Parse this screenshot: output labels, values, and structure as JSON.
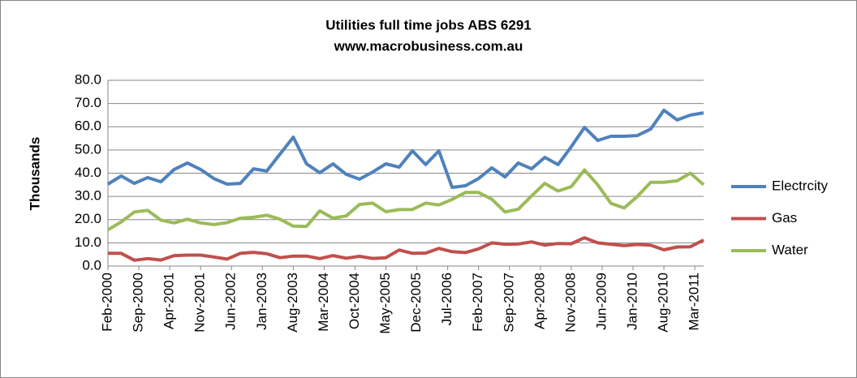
{
  "chart_data": {
    "type": "line",
    "title": "Utilities full time jobs ABS 6291",
    "subtitle": "www.macrobusiness.com.au",
    "y_label": "Thousands",
    "x": [
      "2000-02",
      "2000-05",
      "2000-08",
      "2000-11",
      "2001-02",
      "2001-05",
      "2001-08",
      "2001-11",
      "2002-02",
      "2002-05",
      "2002-08",
      "2002-11",
      "2003-02",
      "2003-05",
      "2003-08",
      "2003-11",
      "2004-02",
      "2004-05",
      "2004-08",
      "2004-11",
      "2005-02",
      "2005-05",
      "2005-08",
      "2005-11",
      "2006-02",
      "2006-05",
      "2006-08",
      "2006-11",
      "2007-02",
      "2007-05",
      "2007-08",
      "2007-11",
      "2008-02",
      "2008-05",
      "2008-08",
      "2008-11",
      "2009-02",
      "2009-05",
      "2009-08",
      "2009-11",
      "2010-02",
      "2010-05",
      "2010-08",
      "2010-11",
      "2011-02",
      "2011-05"
    ],
    "series": [
      {
        "name": "Electrcity",
        "color": "#4f81bd",
        "values": [
          35.3,
          38.8,
          35.6,
          38.1,
          36.3,
          41.6,
          44.4,
          41.6,
          37.7,
          35.3,
          35.6,
          41.9,
          40.9,
          48.2,
          55.5,
          44.0,
          40.2,
          44.0,
          39.5,
          37.4,
          40.5,
          44.0,
          42.6,
          49.6,
          43.7,
          49.6,
          33.9,
          34.6,
          37.7,
          42.3,
          38.4,
          44.4,
          41.9,
          46.8,
          43.7,
          51.4,
          59.7,
          54.1,
          55.9,
          55.9,
          56.2,
          59.0,
          67.1,
          62.9,
          65.0,
          66.0
        ]
      },
      {
        "name": "Gas",
        "color": "#c0504d",
        "values": [
          5.5,
          5.5,
          2.5,
          3.2,
          2.6,
          4.5,
          4.7,
          4.7,
          3.9,
          3.0,
          5.5,
          5.9,
          5.3,
          3.6,
          4.3,
          4.3,
          3.2,
          4.5,
          3.4,
          4.2,
          3.3,
          3.6,
          6.9,
          5.5,
          5.6,
          7.6,
          6.2,
          5.8,
          7.4,
          10.0,
          9.4,
          9.5,
          10.4,
          9.0,
          9.7,
          9.6,
          12.2,
          10.0,
          9.4,
          8.8,
          9.3,
          9.0,
          7.0,
          8.2,
          8.3,
          11.2
        ]
      },
      {
        "name": "Water",
        "color": "#9bbb59",
        "values": [
          15.6,
          19.0,
          23.3,
          24.0,
          19.8,
          18.6,
          20.2,
          18.6,
          17.9,
          18.7,
          20.6,
          21.0,
          21.9,
          20.2,
          17.2,
          17.1,
          23.8,
          20.6,
          21.6,
          26.5,
          27.1,
          23.4,
          24.3,
          24.4,
          27.1,
          26.3,
          28.7,
          31.7,
          31.7,
          28.8,
          23.3,
          24.5,
          30.2,
          35.6,
          32.3,
          34.2,
          41.4,
          35.0,
          27.0,
          25.0,
          30.0,
          36.1,
          36.1,
          36.7,
          40.0,
          35.0
        ]
      }
    ],
    "xlim": [
      "2000-02",
      "2011-05"
    ],
    "xticks": [
      {
        "value": "2000-02",
        "label": "Feb-2000"
      },
      {
        "value": "2000-09",
        "label": "Sep-2000"
      },
      {
        "value": "2001-04",
        "label": "Apr-2001"
      },
      {
        "value": "2001-11",
        "label": "Nov-2001"
      },
      {
        "value": "2002-06",
        "label": "Jun-2002"
      },
      {
        "value": "2003-01",
        "label": "Jan-2003"
      },
      {
        "value": "2003-08",
        "label": "Aug-2003"
      },
      {
        "value": "2004-03",
        "label": "Mar-2004"
      },
      {
        "value": "2004-10",
        "label": "Oct-2004"
      },
      {
        "value": "2005-05",
        "label": "May-2005"
      },
      {
        "value": "2005-12",
        "label": "Dec-2005"
      },
      {
        "value": "2006-07",
        "label": "Jul-2006"
      },
      {
        "value": "2007-02",
        "label": "Feb-2007"
      },
      {
        "value": "2007-09",
        "label": "Sep-2007"
      },
      {
        "value": "2008-04",
        "label": "Apr-2008"
      },
      {
        "value": "2008-11",
        "label": "Nov-2008"
      },
      {
        "value": "2009-06",
        "label": "Jun-2009"
      },
      {
        "value": "2010-01",
        "label": "Jan-2010"
      },
      {
        "value": "2010-08",
        "label": "Aug-2010"
      },
      {
        "value": "2011-03",
        "label": "Mar-2011"
      }
    ],
    "ylim": [
      0,
      80
    ],
    "yticks": [
      {
        "value": 0,
        "label": "0.0"
      },
      {
        "value": 10,
        "label": "10.0"
      },
      {
        "value": 20,
        "label": "20.0"
      },
      {
        "value": 30,
        "label": "30.0"
      },
      {
        "value": 40,
        "label": "40.0"
      },
      {
        "value": 50,
        "label": "50.0"
      },
      {
        "value": 60,
        "label": "60.0"
      },
      {
        "value": 70,
        "label": "70.0"
      },
      {
        "value": 80,
        "label": "80.0"
      }
    ],
    "grid": true,
    "legend": "right"
  }
}
